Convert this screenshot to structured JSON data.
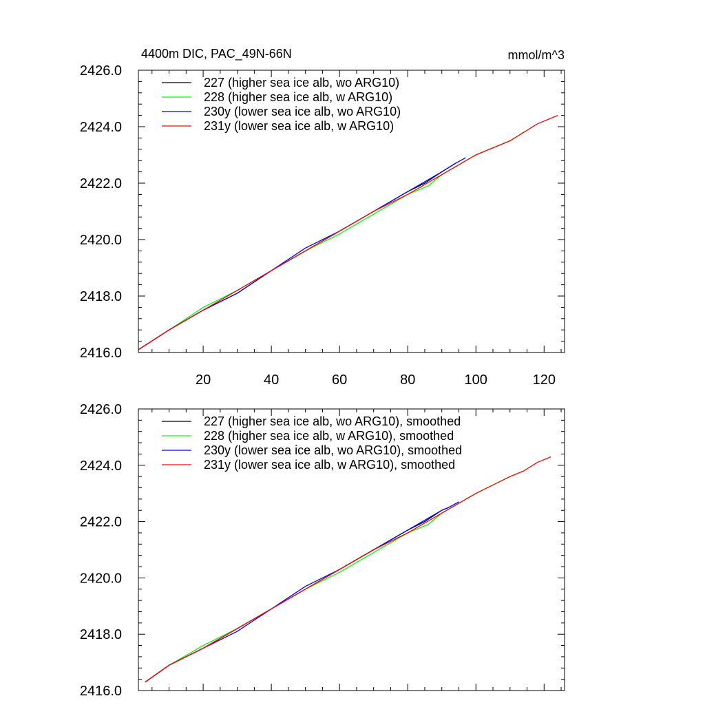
{
  "chart_data": [
    {
      "type": "line",
      "title_left": "4400m DIC, PAC_49N-66N",
      "title_right": "mmol/m^3",
      "xlim": [
        1,
        126
      ],
      "ylim": [
        2416.0,
        2426.0
      ],
      "x_ticks": [
        "20",
        "40",
        "60",
        "80",
        "100",
        "120"
      ],
      "y_ticks": [
        "2416.0",
        "2418.0",
        "2420.0",
        "2422.0",
        "2424.0",
        "2426.0"
      ],
      "legend_position": "top-left",
      "series": [
        {
          "name": "227 (higher sea ice alb, wo ARG10)",
          "color": "#000000",
          "x": [
            1,
            10,
            20,
            30,
            40,
            50,
            60,
            70,
            80,
            85,
            90,
            94
          ],
          "y": [
            2416.1,
            2416.8,
            2417.5,
            2418.1,
            2418.9,
            2419.6,
            2420.3,
            2421.0,
            2421.7,
            2422.0,
            2422.4,
            2422.7
          ]
        },
        {
          "name": "228 (higher sea ice alb, w ARG10)",
          "color": "#00ff00",
          "x": [
            1,
            10,
            20,
            30,
            40,
            50,
            60,
            70,
            80,
            86,
            90,
            100,
            110,
            114
          ],
          "y": [
            2416.1,
            2416.8,
            2417.6,
            2418.2,
            2418.9,
            2419.6,
            2420.2,
            2420.9,
            2421.6,
            2421.9,
            2422.3,
            2423.0,
            2423.5,
            2423.8
          ]
        },
        {
          "name": "230y (lower sea ice alb, wo ARG10)",
          "color": "#0000ff",
          "x": [
            1,
            10,
            20,
            30,
            40,
            50,
            60,
            70,
            80,
            90,
            94,
            97
          ],
          "y": [
            2416.1,
            2416.8,
            2417.5,
            2418.1,
            2418.9,
            2419.7,
            2420.3,
            2421.0,
            2421.7,
            2422.4,
            2422.7,
            2422.9
          ]
        },
        {
          "name": "231y (lower sea ice alb, w ARG10)",
          "color": "#ff0000",
          "x": [
            1,
            10,
            20,
            30,
            40,
            50,
            60,
            70,
            80,
            90,
            100,
            110,
            114,
            118,
            124
          ],
          "y": [
            2416.1,
            2416.8,
            2417.5,
            2418.2,
            2418.9,
            2419.6,
            2420.3,
            2421.0,
            2421.6,
            2422.3,
            2423.0,
            2423.5,
            2423.8,
            2424.1,
            2424.4
          ]
        }
      ]
    },
    {
      "type": "line",
      "xlim": [
        1,
        126
      ],
      "ylim": [
        2416.0,
        2426.0
      ],
      "y_ticks": [
        "2416.0",
        "2418.0",
        "2420.0",
        "2422.0",
        "2424.0",
        "2426.0"
      ],
      "legend_position": "top-left",
      "series": [
        {
          "name": "227 (higher sea ice alb, wo ARG10), smoothed",
          "color": "#000000",
          "x": [
            3,
            10,
            20,
            30,
            40,
            50,
            60,
            70,
            80,
            85,
            90,
            92
          ],
          "y": [
            2416.3,
            2416.9,
            2417.5,
            2418.2,
            2418.9,
            2419.6,
            2420.3,
            2421.0,
            2421.7,
            2422.0,
            2422.4,
            2422.5
          ]
        },
        {
          "name": "228 (higher sea ice alb, w ARG10), smoothed",
          "color": "#00ff00",
          "x": [
            3,
            10,
            20,
            30,
            40,
            50,
            60,
            70,
            80,
            86,
            90,
            100,
            110,
            112
          ],
          "y": [
            2416.3,
            2416.9,
            2417.6,
            2418.2,
            2418.9,
            2419.6,
            2420.2,
            2420.9,
            2421.6,
            2421.9,
            2422.3,
            2423.0,
            2423.6,
            2423.7
          ]
        },
        {
          "name": "230y (lower sea ice alb, wo ARG10), smoothed",
          "color": "#0000ff",
          "x": [
            3,
            10,
            20,
            30,
            40,
            50,
            60,
            70,
            80,
            90,
            92,
            95
          ],
          "y": [
            2416.3,
            2416.9,
            2417.5,
            2418.1,
            2418.9,
            2419.7,
            2420.3,
            2421.0,
            2421.7,
            2422.4,
            2422.5,
            2422.7
          ]
        },
        {
          "name": "231y (lower sea ice alb, w ARG10), smoothed",
          "color": "#ff0000",
          "x": [
            3,
            10,
            20,
            30,
            40,
            50,
            60,
            70,
            80,
            90,
            100,
            110,
            114,
            118,
            122
          ],
          "y": [
            2416.3,
            2416.9,
            2417.5,
            2418.2,
            2418.9,
            2419.6,
            2420.3,
            2421.0,
            2421.6,
            2422.3,
            2423.0,
            2423.6,
            2423.8,
            2424.1,
            2424.3
          ]
        }
      ]
    }
  ]
}
